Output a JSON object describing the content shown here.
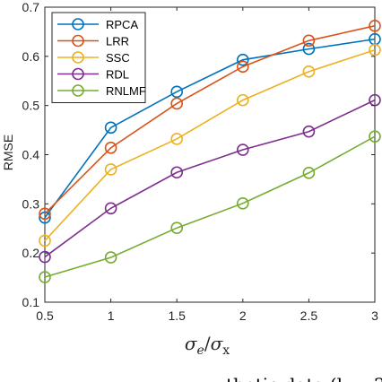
{
  "chart_data": {
    "type": "line",
    "x": [
      0.5,
      1,
      1.5,
      2,
      2.5,
      3
    ],
    "xlim": [
      0.5,
      3
    ],
    "ylim": [
      0.1,
      0.7
    ],
    "xticks": [
      "0.5",
      "1",
      "1.5",
      "2",
      "2.5",
      "3"
    ],
    "yticks": [
      "0.1",
      "0.2",
      "0.3",
      "0.4",
      "0.5",
      "0.6",
      "0.7"
    ],
    "ylabel": "RMSE",
    "xlabel": {
      "main": "σ",
      "sub1": "e",
      "slash": "/",
      "main2": "σ",
      "sub2": "x"
    },
    "legend_position": "top-left",
    "grid": false,
    "series": [
      {
        "name": "RPCA",
        "color": "#0072BD",
        "values": [
          0.272,
          0.455,
          0.528,
          0.593,
          0.615,
          0.635
        ]
      },
      {
        "name": "LRR",
        "color": "#D95319",
        "values": [
          0.28,
          0.414,
          0.504,
          0.579,
          0.632,
          0.662
        ]
      },
      {
        "name": "SSC",
        "color": "#EDB120",
        "values": [
          0.225,
          0.37,
          0.432,
          0.511,
          0.569,
          0.613
        ]
      },
      {
        "name": "RDL",
        "color": "#7E2F8E",
        "values": [
          0.192,
          0.291,
          0.364,
          0.41,
          0.447,
          0.511
        ]
      },
      {
        "name": "RNLMF",
        "color": "#77AC30",
        "values": [
          0.151,
          0.191,
          0.251,
          0.301,
          0.363,
          0.437
        ]
      }
    ]
  },
  "caption_fragment": "thetic data (k = 2"
}
